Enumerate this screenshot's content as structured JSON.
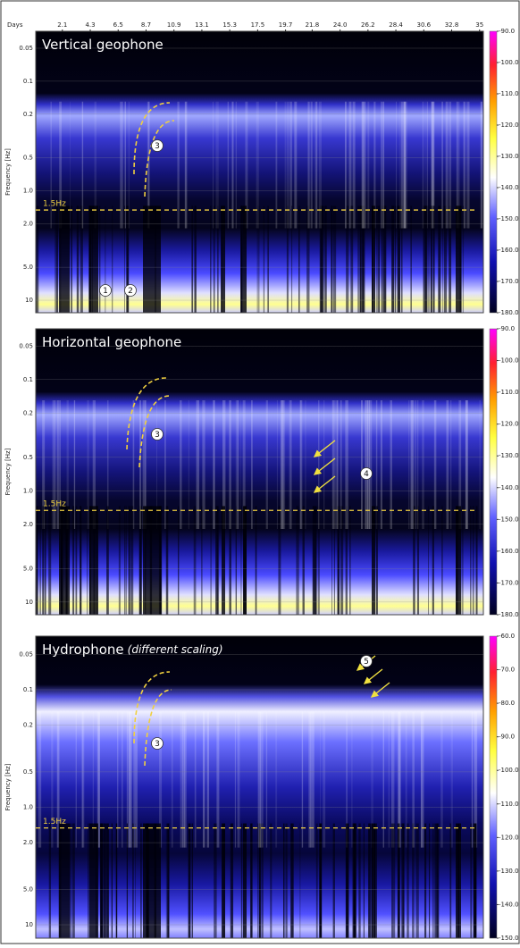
{
  "chart_data": [
    {
      "type": "spectrogram",
      "title": "Vertical geophone",
      "xlabel": "Days",
      "ylabel": "Frequency [Hz]",
      "xlim": [
        0,
        35.3
      ],
      "xticks": [
        2.1,
        4.3,
        6.5,
        8.7,
        10.9,
        13.1,
        15.3,
        17.5,
        19.7,
        21.8,
        {
          "value": 24,
          "label": "24.0"
        },
        26.2,
        28.4,
        30.6,
        32.8,
        35
      ],
      "yscale": "log",
      "ylim": [
        0.035,
        13
      ],
      "yticks": [
        0.05,
        0.1,
        0.2,
        0.5,
        {
          "value": 1,
          "label": "1.0"
        },
        {
          "value": 2,
          "label": "2.0"
        },
        {
          "value": 5,
          "label": "5.0"
        },
        10
      ],
      "clim": [
        -90,
        -180
      ],
      "cticks": [
        {
          "value": -90,
          "label": "-90.0"
        },
        {
          "value": -100,
          "label": "-100.0"
        },
        {
          "value": -110,
          "label": "-110.0"
        },
        {
          "value": -120,
          "label": "-120.0"
        },
        {
          "value": -130,
          "label": "-130.0"
        },
        {
          "value": -140,
          "label": "-140.0"
        },
        {
          "value": -150,
          "label": "-150.0"
        },
        {
          "value": -160,
          "label": "-160.0"
        },
        {
          "value": -170,
          "label": "-170.0"
        },
        {
          "value": -180,
          "label": "-180.0"
        }
      ],
      "reference_line": {
        "label": "1.5Hz",
        "y": 1.5
      },
      "markers": [
        "1",
        "2",
        "3"
      ]
    },
    {
      "type": "spectrogram",
      "title": "Horizontal geophone",
      "ylabel": "Frequency [Hz]",
      "xlim": [
        0,
        35.3
      ],
      "yscale": "log",
      "ylim": [
        0.035,
        13
      ],
      "yticks": [
        0.05,
        0.1,
        0.2,
        0.5,
        {
          "value": 1,
          "label": "1.0"
        },
        {
          "value": 2,
          "label": "2.0"
        },
        {
          "value": 5,
          "label": "5.0"
        },
        10
      ],
      "clim": [
        -90,
        -180
      ],
      "cticks": [
        {
          "value": -90,
          "label": "-90.0"
        },
        {
          "value": -100,
          "label": "-100.0"
        },
        {
          "value": -110,
          "label": "-110.0"
        },
        {
          "value": -120,
          "label": "-120.0"
        },
        {
          "value": -130,
          "label": "-130.0"
        },
        {
          "value": -140,
          "label": "-140.0"
        },
        {
          "value": -150,
          "label": "-150.0"
        },
        {
          "value": -160,
          "label": "-160.0"
        },
        {
          "value": -170,
          "label": "-170.0"
        },
        {
          "value": -180,
          "label": "-180.0"
        }
      ],
      "reference_line": {
        "label": "1.5Hz",
        "y": 1.5
      },
      "markers": [
        "3",
        "4"
      ]
    },
    {
      "type": "spectrogram",
      "title": "Hydrophone",
      "subtitle": "(different scaling)",
      "ylabel": "Frequency [Hz]",
      "xlim": [
        0,
        35.3
      ],
      "yscale": "log",
      "ylim": [
        0.035,
        13
      ],
      "yticks": [
        0.05,
        0.1,
        0.2,
        0.5,
        {
          "value": 1,
          "label": "1.0"
        },
        {
          "value": 2,
          "label": "2.0"
        },
        {
          "value": 5,
          "label": "5.0"
        },
        10
      ],
      "clim": [
        -60,
        -150
      ],
      "cticks": [
        {
          "value": -60,
          "label": "-60.0"
        },
        {
          "value": -70,
          "label": "-70.0"
        },
        {
          "value": -80,
          "label": "-80.0"
        },
        {
          "value": -90,
          "label": "-90.0"
        },
        {
          "value": -100,
          "label": "-100.0"
        },
        {
          "value": -110,
          "label": "-110.0"
        },
        {
          "value": -120,
          "label": "-120.0"
        },
        {
          "value": -130,
          "label": "-130.0"
        },
        {
          "value": -140,
          "label": "-140.0"
        },
        {
          "value": -150,
          "label": "-150.0"
        }
      ],
      "reference_line": {
        "label": "1.5Hz",
        "y": 1.5
      },
      "markers": [
        "3",
        "5"
      ]
    }
  ]
}
